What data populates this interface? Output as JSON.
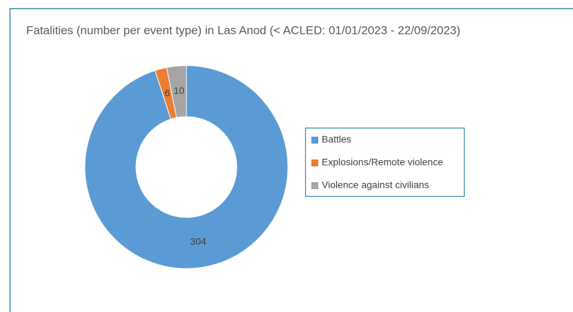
{
  "chart_data": {
    "type": "donut",
    "title": "Fatalities (number per event type) in  Las Anod (< ACLED: 01/01/2023 - 22/09/2023)",
    "categories": [
      "Battles",
      "Explosions/Remote violence",
      "Violence against civilians"
    ],
    "values": [
      304,
      6,
      10
    ],
    "colors": [
      "#5b9bd5",
      "#ed7d31",
      "#a5a5a5"
    ],
    "legend": "right"
  }
}
